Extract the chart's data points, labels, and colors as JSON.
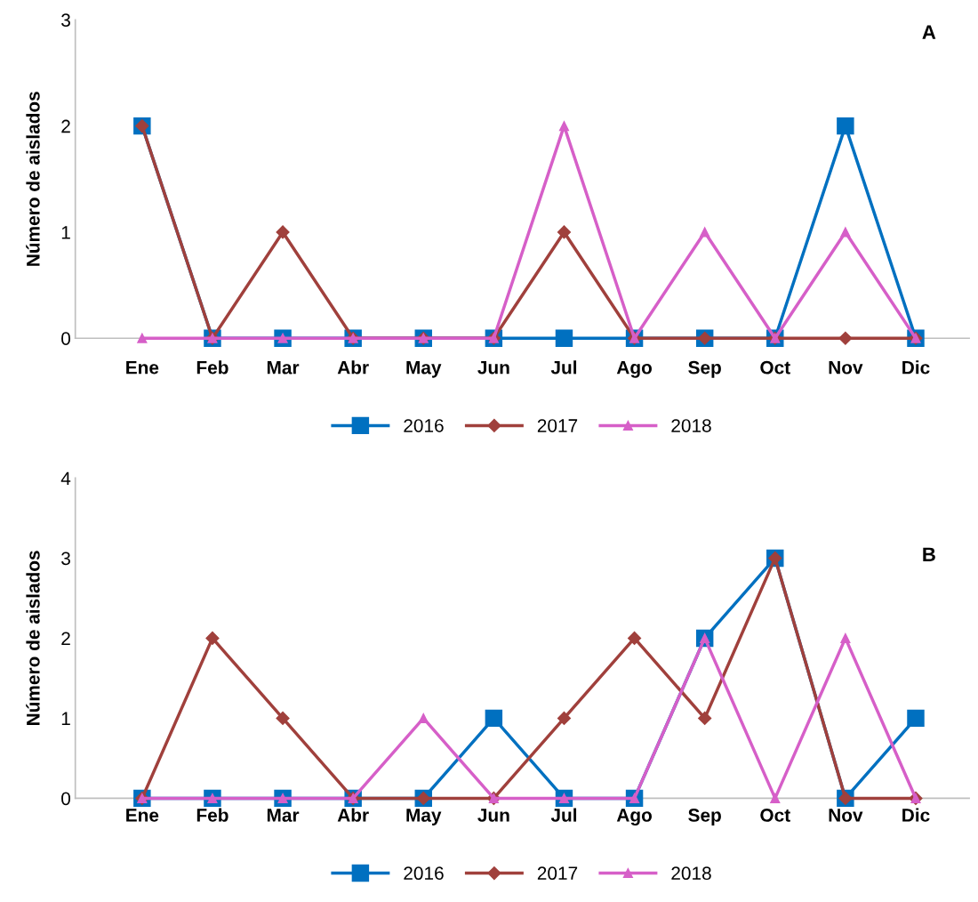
{
  "chart_data": [
    {
      "type": "line",
      "ylabel": "Número de aislados",
      "annotations": [
        "A"
      ],
      "categories": [
        "Ene",
        "Feb",
        "Mar",
        "Abr",
        "May",
        "Jun",
        "Jul",
        "Ago",
        "Sep",
        "Oct",
        "Nov",
        "Dic"
      ],
      "ylim": [
        0,
        3
      ],
      "yticks": [
        0,
        1,
        2,
        3
      ],
      "grid": false,
      "legend": "bottom",
      "series": [
        {
          "name": "2016",
          "color": "#0070c0",
          "marker": "square",
          "values": [
            2,
            0,
            0,
            0,
            0,
            0,
            0,
            0,
            0,
            0,
            2,
            0
          ]
        },
        {
          "name": "2017",
          "color": "#a0403c",
          "marker": "diamond",
          "values": [
            2,
            0,
            1,
            0,
            0,
            0,
            1,
            0,
            0,
            0,
            0,
            0
          ]
        },
        {
          "name": "2018",
          "color": "#d65fc8",
          "marker": "triangle",
          "values": [
            0,
            0,
            0,
            0,
            0,
            0,
            2,
            0,
            1,
            0,
            1,
            0
          ]
        }
      ]
    },
    {
      "type": "line",
      "ylabel": "Número de aislados",
      "annotations": [
        "B"
      ],
      "categories": [
        "Ene",
        "Feb",
        "Mar",
        "Abr",
        "May",
        "Jun",
        "Jul",
        "Ago",
        "Sep",
        "Oct",
        "Nov",
        "Dic"
      ],
      "ylim": [
        0,
        4
      ],
      "yticks": [
        0,
        1,
        2,
        3,
        4
      ],
      "grid": false,
      "legend": "bottom",
      "series": [
        {
          "name": "2016",
          "color": "#0070c0",
          "marker": "square",
          "values": [
            0,
            0,
            0,
            0,
            0,
            1,
            0,
            0,
            2,
            3,
            0,
            1
          ]
        },
        {
          "name": "2017",
          "color": "#a0403c",
          "marker": "diamond",
          "values": [
            0,
            2,
            1,
            0,
            0,
            0,
            1,
            2,
            1,
            3,
            0,
            0
          ]
        },
        {
          "name": "2018",
          "color": "#d65fc8",
          "marker": "triangle",
          "values": [
            0,
            0,
            0,
            0,
            1,
            0,
            0,
            0,
            2,
            0,
            2,
            0
          ]
        }
      ]
    }
  ]
}
